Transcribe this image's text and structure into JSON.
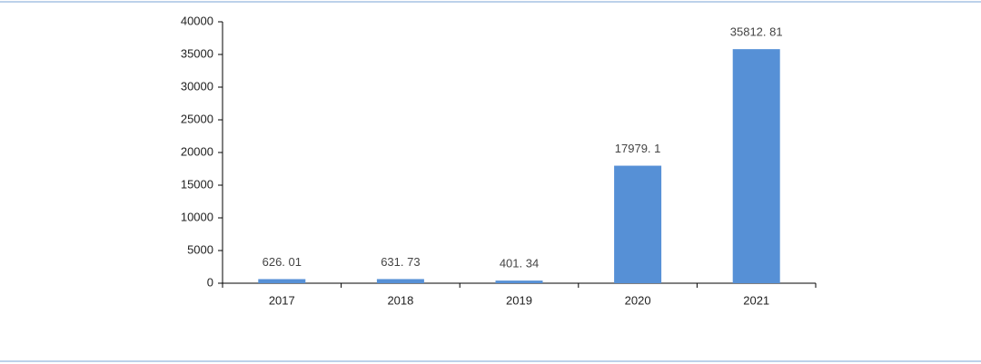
{
  "chart_data": {
    "type": "bar",
    "categories": [
      "2017",
      "2018",
      "2019",
      "2020",
      "2021"
    ],
    "values": [
      626.01,
      631.73,
      401.34,
      17979.1,
      35812.81
    ],
    "value_labels": [
      "626. 01",
      "631. 73",
      "401. 34",
      "17979. 1",
      "35812. 81"
    ],
    "color": "#5690d6",
    "ylim": [
      0,
      40000
    ],
    "yticks": [
      0,
      5000,
      10000,
      15000,
      20000,
      25000,
      30000,
      35000,
      40000
    ],
    "grid": false
  }
}
